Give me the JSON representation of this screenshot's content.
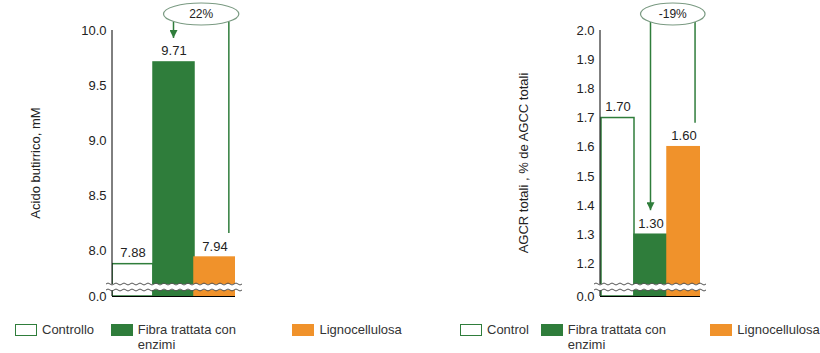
{
  "chart_data": [
    {
      "type": "bar",
      "y_label": "Acido butirrico, mM",
      "categories": [
        "Controllo",
        "Fibra trattata con enzimi",
        "Lignocellulosa"
      ],
      "values": [
        7.88,
        9.71,
        7.94
      ],
      "colors": [
        "#ffffff",
        "#2f7d3b",
        "#f0922b"
      ],
      "ylim": [
        0,
        10
      ],
      "yticks": [
        {
          "value": 0,
          "label": "0.0"
        },
        {
          "value": 8,
          "label": "8.0"
        },
        8.5,
        {
          "value": 9,
          "label": "9.0"
        },
        9.5,
        {
          "value": 10,
          "label": "10.0"
        }
      ],
      "data_labels": true,
      "legend": "bottom",
      "tick_labels": "y",
      "annotations": [
        "22%"
      ]
    },
    {
      "type": "bar",
      "y_label": "AGCR totali , % de AGCC totali",
      "categories": [
        "Control",
        "Fibra trattata con enzimi",
        "Lignocellulosa"
      ],
      "values": [
        1.7,
        1.3,
        1.6
      ],
      "value_labels": [
        "1.70",
        "1.30",
        "1.60"
      ],
      "colors": [
        "#ffffff",
        "#2f7d3b",
        "#f0922b"
      ],
      "ylim": [
        0,
        2
      ],
      "yticks": [
        {
          "value": 0,
          "label": "0.0"
        },
        1.2,
        1.3,
        1.4,
        1.5,
        1.6,
        1.7,
        1.8,
        1.9,
        {
          "value": 2,
          "label": "2.0"
        }
      ],
      "data_labels": true,
      "legend": "bottom",
      "tick_labels": "y",
      "annotations": [
        "-19%"
      ]
    }
  ]
}
